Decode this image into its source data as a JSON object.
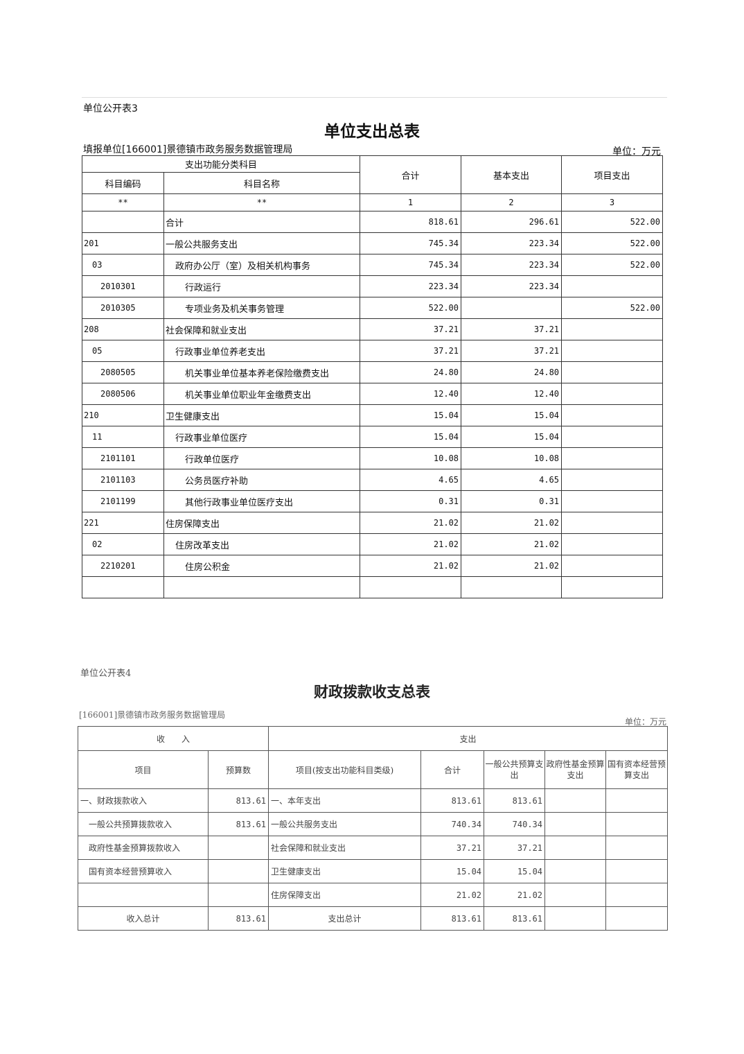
{
  "table3": {
    "label": "单位公开表3",
    "title": "单位支出总表",
    "unit_org": "填报单位[166001]景德镇市政务服务数据管理局",
    "unit": "单位：万元",
    "headers": {
      "group": "支出功能分类科目",
      "code": "科目编码",
      "name": "科目名称",
      "total": "合计",
      "basic": "基本支出",
      "project": "项目支出"
    },
    "index_row": [
      "**",
      "**",
      "1",
      "2",
      "3"
    ],
    "rows": [
      {
        "code": "",
        "name": "合计",
        "total": "818.61",
        "basic": "296.61",
        "project": "522.00",
        "lvl": 0
      },
      {
        "code": "201",
        "name": "一般公共服务支出",
        "total": "745.34",
        "basic": "223.34",
        "project": "522.00",
        "lvl": 0
      },
      {
        "code": "03",
        "name": "政府办公厅（室）及相关机构事务",
        "total": "745.34",
        "basic": "223.34",
        "project": "522.00",
        "lvl": 1
      },
      {
        "code": "2010301",
        "name": "行政运行",
        "total": "223.34",
        "basic": "223.34",
        "project": "",
        "lvl": 2
      },
      {
        "code": "2010305",
        "name": "专项业务及机关事务管理",
        "total": "522.00",
        "basic": "",
        "project": "522.00",
        "lvl": 2
      },
      {
        "code": "208",
        "name": "社会保障和就业支出",
        "total": "37.21",
        "basic": "37.21",
        "project": "",
        "lvl": 0
      },
      {
        "code": "05",
        "name": "行政事业单位养老支出",
        "total": "37.21",
        "basic": "37.21",
        "project": "",
        "lvl": 1
      },
      {
        "code": "2080505",
        "name": "机关事业单位基本养老保险缴费支出",
        "total": "24.80",
        "basic": "24.80",
        "project": "",
        "lvl": 2
      },
      {
        "code": "2080506",
        "name": "机关事业单位职业年金缴费支出",
        "total": "12.40",
        "basic": "12.40",
        "project": "",
        "lvl": 2
      },
      {
        "code": "210",
        "name": "卫生健康支出",
        "total": "15.04",
        "basic": "15.04",
        "project": "",
        "lvl": 0
      },
      {
        "code": "11",
        "name": "行政事业单位医疗",
        "total": "15.04",
        "basic": "15.04",
        "project": "",
        "lvl": 1
      },
      {
        "code": "2101101",
        "name": "行政单位医疗",
        "total": "10.08",
        "basic": "10.08",
        "project": "",
        "lvl": 2
      },
      {
        "code": "2101103",
        "name": "公务员医疗补助",
        "total": "4.65",
        "basic": "4.65",
        "project": "",
        "lvl": 2
      },
      {
        "code": "2101199",
        "name": "其他行政事业单位医疗支出",
        "total": "0.31",
        "basic": "0.31",
        "project": "",
        "lvl": 2
      },
      {
        "code": "221",
        "name": "住房保障支出",
        "total": "21.02",
        "basic": "21.02",
        "project": "",
        "lvl": 0
      },
      {
        "code": "02",
        "name": "住房改革支出",
        "total": "21.02",
        "basic": "21.02",
        "project": "",
        "lvl": 1
      },
      {
        "code": "2210201",
        "name": "住房公积金",
        "total": "21.02",
        "basic": "21.02",
        "project": "",
        "lvl": 2
      },
      {
        "code": "",
        "name": "",
        "total": "",
        "basic": "",
        "project": "",
        "lvl": 0
      }
    ]
  },
  "table4": {
    "label": "单位公开表4",
    "title": "财政拨款收支总表",
    "unit_org": "[166001]景德镇市政务服务数据管理局",
    "unit": "单位：万元",
    "headers": {
      "income": "收　　入",
      "expense": "支出",
      "item": "项目",
      "budget": "预算数",
      "exp_item": "项目(按支出功能科目类级)",
      "total": "合计",
      "general": "一般公共预算支出",
      "gov_fund": "政府性基金预算支出",
      "state_capital": "国有资本经营预算支出"
    },
    "rows": [
      [
        "一、财政拨款收入",
        "813.61",
        "一、本年支出",
        "813.61",
        "813.61",
        "",
        ""
      ],
      [
        "　一般公共预算拨款收入",
        "813.61",
        "一般公共服务支出",
        "740.34",
        "740.34",
        "",
        ""
      ],
      [
        "　政府性基金预算拨款收入",
        "",
        "社会保障和就业支出",
        "37.21",
        "37.21",
        "",
        ""
      ],
      [
        "　国有资本经营预算收入",
        "",
        "卫生健康支出",
        "15.04",
        "15.04",
        "",
        ""
      ],
      [
        "",
        "",
        "住房保障支出",
        "21.02",
        "21.02",
        "",
        ""
      ],
      [
        "收入总计",
        "813.61",
        "支出总计",
        "813.61",
        "813.61",
        "",
        ""
      ]
    ]
  }
}
